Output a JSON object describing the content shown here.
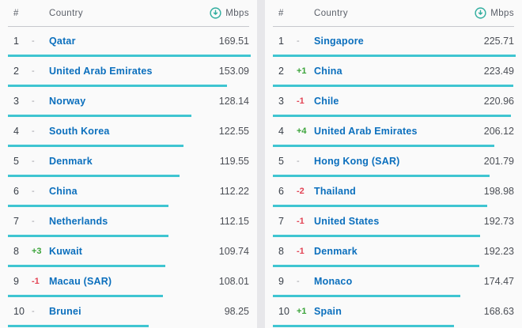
{
  "colors": {
    "bar": "#3fc5d1",
    "link": "#0b6fbd",
    "positive": "#3ba43a",
    "negative": "#e34455",
    "muted": "#9b9ba3",
    "icon": "#2fad9e"
  },
  "tables": [
    {
      "header": {
        "rank": "#",
        "country": "Country",
        "metric": "Mbps",
        "sort_icon": "download-icon"
      },
      "max_value": 169.51,
      "rows": [
        {
          "rank": "1",
          "change": "-",
          "country": "Qatar",
          "value": "169.51"
        },
        {
          "rank": "2",
          "change": "-",
          "country": "United Arab Emirates",
          "value": "153.09"
        },
        {
          "rank": "3",
          "change": "-",
          "country": "Norway",
          "value": "128.14"
        },
        {
          "rank": "4",
          "change": "-",
          "country": "South Korea",
          "value": "122.55"
        },
        {
          "rank": "5",
          "change": "-",
          "country": "Denmark",
          "value": "119.55"
        },
        {
          "rank": "6",
          "change": "-",
          "country": "China",
          "value": "112.22"
        },
        {
          "rank": "7",
          "change": "-",
          "country": "Netherlands",
          "value": "112.15"
        },
        {
          "rank": "8",
          "change": "+3",
          "country": "Kuwait",
          "value": "109.74"
        },
        {
          "rank": "9",
          "change": "-1",
          "country": "Macau (SAR)",
          "value": "108.01"
        },
        {
          "rank": "10",
          "change": "-",
          "country": "Brunei",
          "value": "98.25"
        }
      ]
    },
    {
      "header": {
        "rank": "#",
        "country": "Country",
        "metric": "Mbps",
        "sort_icon": "download-icon"
      },
      "max_value": 225.71,
      "rows": [
        {
          "rank": "1",
          "change": "-",
          "country": "Singapore",
          "value": "225.71"
        },
        {
          "rank": "2",
          "change": "+1",
          "country": "China",
          "value": "223.49"
        },
        {
          "rank": "3",
          "change": "-1",
          "country": "Chile",
          "value": "220.96"
        },
        {
          "rank": "4",
          "change": "+4",
          "country": "United Arab Emirates",
          "value": "206.12"
        },
        {
          "rank": "5",
          "change": "-",
          "country": "Hong Kong (SAR)",
          "value": "201.79"
        },
        {
          "rank": "6",
          "change": "-2",
          "country": "Thailand",
          "value": "198.98"
        },
        {
          "rank": "7",
          "change": "-1",
          "country": "United States",
          "value": "192.73"
        },
        {
          "rank": "8",
          "change": "-1",
          "country": "Denmark",
          "value": "192.23"
        },
        {
          "rank": "9",
          "change": "-",
          "country": "Monaco",
          "value": "174.47"
        },
        {
          "rank": "10",
          "change": "+1",
          "country": "Spain",
          "value": "168.63"
        }
      ]
    }
  ]
}
